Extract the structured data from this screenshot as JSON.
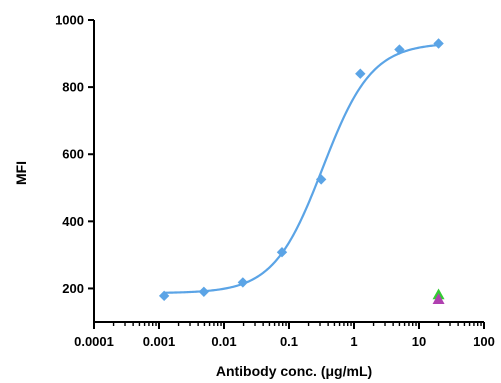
{
  "chart_data": {
    "type": "scatter",
    "title": "",
    "xlabel": "Antibody conc. (μg/mL)",
    "ylabel": "MFI",
    "x_scale": "log",
    "xlim": [
      0.0001,
      100
    ],
    "ylim": [
      100,
      1000
    ],
    "x_ticks": [
      {
        "value": 0.0001,
        "label": "0.0001"
      },
      {
        "value": 0.001,
        "label": "0.001"
      },
      {
        "value": 0.01,
        "label": "0.01"
      },
      {
        "value": 0.1,
        "label": "0.1"
      },
      {
        "value": 1,
        "label": "1"
      },
      {
        "value": 10,
        "label": "10"
      },
      {
        "value": 100,
        "label": "100"
      }
    ],
    "y_ticks": [
      {
        "value": 200,
        "label": "200"
      },
      {
        "value": 400,
        "label": "400"
      },
      {
        "value": 600,
        "label": "600"
      },
      {
        "value": 800,
        "label": "800"
      },
      {
        "value": 1000,
        "label": "1000"
      }
    ],
    "grid": false,
    "series": [
      {
        "marker": "diamond",
        "color": "#5ba4e6",
        "fit": "4PL sigmoid",
        "x": [
          0.0012,
          0.0049,
          0.0195,
          0.078,
          0.3125,
          1.25,
          5,
          20
        ],
        "y": [
          178,
          190,
          218,
          308,
          525,
          840,
          912,
          930
        ]
      },
      {
        "marker": "triangle",
        "color": "#33cc33",
        "x": [
          20
        ],
        "y": [
          182
        ]
      },
      {
        "marker": "triangle",
        "color": "#b040b0",
        "x": [
          20
        ],
        "y": [
          168
        ]
      }
    ]
  }
}
